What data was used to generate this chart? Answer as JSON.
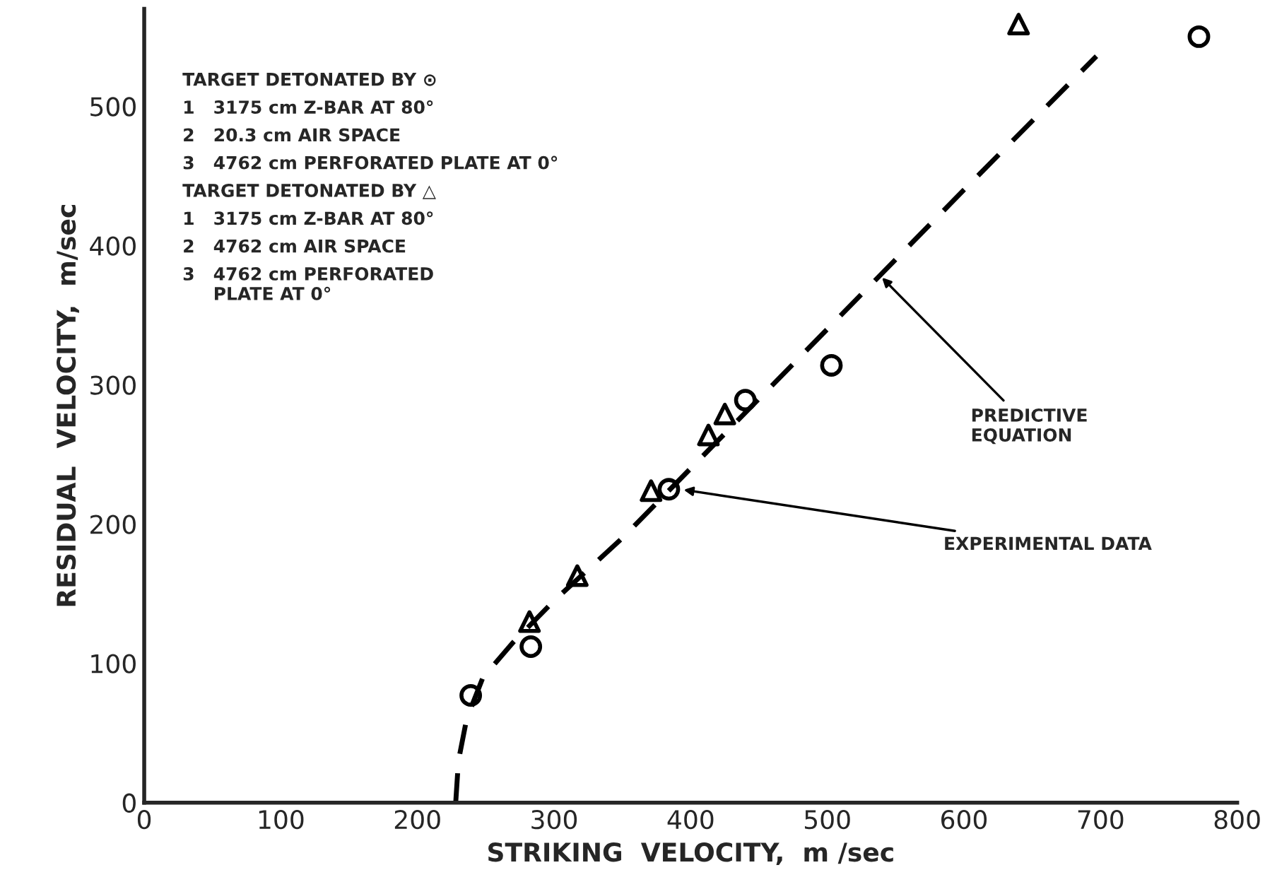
{
  "chart_data": {
    "type": "scatter",
    "xlabel": "STRIKING  VELOCITY,  m /sec",
    "ylabel": "RESIDUAL  VELOCITY,  m/sec",
    "xlim": [
      0,
      800
    ],
    "ylim": [
      0,
      570
    ],
    "xticks": [
      0,
      100,
      200,
      300,
      400,
      500,
      600,
      700,
      800
    ],
    "yticks": [
      0,
      100,
      200,
      300,
      400,
      500
    ],
    "grid": false,
    "legend": false,
    "series": [
      {
        "marker": "circle",
        "color": "#000000",
        "x": [
          239,
          283,
          384,
          440,
          503,
          772
        ],
        "values": [
          77,
          112,
          225,
          289,
          314,
          550
        ]
      },
      {
        "marker": "triangle",
        "color": "#000000",
        "x": [
          282,
          317,
          371,
          413,
          425,
          640
        ],
        "values": [
          130,
          163,
          224,
          264,
          279,
          559
        ]
      },
      {
        "type": "line",
        "line_style": "dashed",
        "marker": "none",
        "color": "#000000",
        "x": [
          228,
          230,
          236,
          248,
          270,
          300,
          350,
          400,
          450,
          500,
          600,
          697
        ],
        "values": [
          0,
          30,
          60,
          90,
          115,
          145,
          190,
          240,
          290,
          340,
          440,
          536
        ]
      }
    ],
    "annotations": [
      "TARGET DETONATED BY ⊙",
      "1   3175 cm Z-BAR AT 80°",
      "2   20.3 cm AIR SPACE",
      "3   4762 cm PERFORATED PLATE AT 0°",
      "TARGET DETONATED BY △",
      "1   3175 cm Z-BAR AT 80°",
      "2   4762 cm AIR SPACE",
      "3   4762 cm PERFORATED\n     PLATE AT 0°",
      {
        "text": "PREDICTIVE\nEQUATION",
        "x": 538,
        "y": 379
      },
      {
        "text": "EXPERIMENTAL DATA",
        "x": 392,
        "y": 225
      }
    ]
  }
}
